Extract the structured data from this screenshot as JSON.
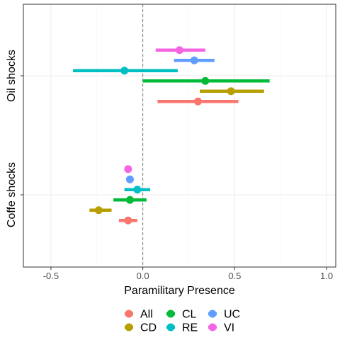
{
  "chart_data": {
    "type": "dot-whisker",
    "xlabel": "Paramilitary Presence",
    "xlim": [
      -0.65,
      1.05
    ],
    "xticks": [
      -0.5,
      0.0,
      0.5,
      1.0
    ],
    "xtick_labels": [
      "-0.5",
      "0.0",
      "0.5",
      "1.0"
    ],
    "reference_line_x": 0,
    "grid": true,
    "legend_position": "bottom",
    "categories": [
      "Oil shocks",
      "Coffe shocks"
    ],
    "series": [
      {
        "name": "All",
        "color": "#F8766D",
        "values": [
          {
            "category": "Oil shocks",
            "estimate": 0.3,
            "low": 0.08,
            "high": 0.52
          },
          {
            "category": "Coffe shocks",
            "estimate": -0.08,
            "low": -0.13,
            "high": -0.03
          }
        ]
      },
      {
        "name": "CD",
        "color": "#B79F00",
        "values": [
          {
            "category": "Oil shocks",
            "estimate": 0.48,
            "low": 0.31,
            "high": 0.66
          },
          {
            "category": "Coffe shocks",
            "estimate": -0.24,
            "low": -0.29,
            "high": -0.17
          }
        ]
      },
      {
        "name": "CL",
        "color": "#00BA38",
        "values": [
          {
            "category": "Oil shocks",
            "estimate": 0.34,
            "low": 0.0,
            "high": 0.69
          },
          {
            "category": "Coffe shocks",
            "estimate": -0.07,
            "low": -0.16,
            "high": 0.02
          }
        ]
      },
      {
        "name": "RE",
        "color": "#00BFC4",
        "values": [
          {
            "category": "Oil shocks",
            "estimate": -0.1,
            "low": -0.38,
            "high": 0.19
          },
          {
            "category": "Coffe shocks",
            "estimate": -0.03,
            "low": -0.1,
            "high": 0.04
          }
        ]
      },
      {
        "name": "UC",
        "color": "#619CFF",
        "values": [
          {
            "category": "Oil shocks",
            "estimate": 0.28,
            "low": 0.17,
            "high": 0.39
          },
          {
            "category": "Coffe shocks",
            "estimate": -0.07,
            "low": -0.09,
            "high": -0.05
          }
        ]
      },
      {
        "name": "VI",
        "color": "#F564E3",
        "values": [
          {
            "category": "Oil shocks",
            "estimate": 0.2,
            "low": 0.07,
            "high": 0.34
          },
          {
            "category": "Coffe shocks",
            "estimate": -0.08,
            "low": -0.1,
            "high": -0.06
          }
        ]
      }
    ]
  }
}
